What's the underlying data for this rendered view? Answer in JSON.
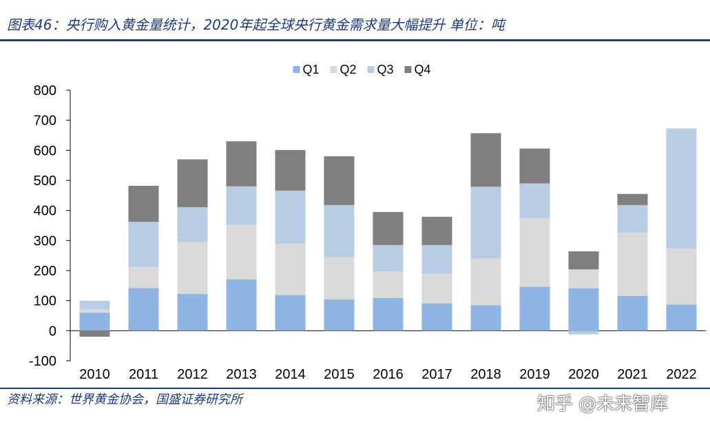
{
  "header": {
    "title": "图表46：央行购入黄金量统计，2020年起全球央行黄金需求量大幅提升 单位：吨"
  },
  "footer": {
    "source": "资料来源：世界黄金协会，国盛证券研究所",
    "watermark": "知乎 @未来智库"
  },
  "colors": {
    "Q1": "#8eb4e3",
    "Q2": "#d9d9d9",
    "Q3": "#b8cce4",
    "Q4": "#7f7f7f",
    "axis": "#000000",
    "brand": "#1f3a7a"
  },
  "chart_data": {
    "type": "bar",
    "stacked": true,
    "categories": [
      "2010",
      "2011",
      "2012",
      "2013",
      "2014",
      "2015",
      "2016",
      "2017",
      "2018",
      "2019",
      "2020",
      "2021",
      "2022"
    ],
    "series": [
      {
        "name": "Q1",
        "values": [
          60,
          142,
          122,
          171,
          119,
          104,
          109,
          91,
          85,
          146,
          141,
          116,
          87
        ]
      },
      {
        "name": "Q2",
        "values": [
          10,
          70,
          173,
          182,
          170,
          141,
          88,
          98,
          155,
          229,
          63,
          211,
          186
        ]
      },
      {
        "name": "Q3",
        "values": [
          30,
          150,
          116,
          127,
          177,
          173,
          88,
          96,
          239,
          115,
          -12,
          91,
          400
        ]
      },
      {
        "name": "Q4",
        "values": [
          -20,
          120,
          159,
          150,
          135,
          162,
          110,
          94,
          178,
          116,
          60,
          37,
          0
        ]
      }
    ],
    "yticks": [
      -100,
      0,
      100,
      200,
      300,
      400,
      500,
      600,
      700,
      800
    ],
    "ylim": [
      -100,
      800
    ],
    "legend_position": "top-center",
    "title": "",
    "xlabel": "",
    "ylabel": ""
  }
}
